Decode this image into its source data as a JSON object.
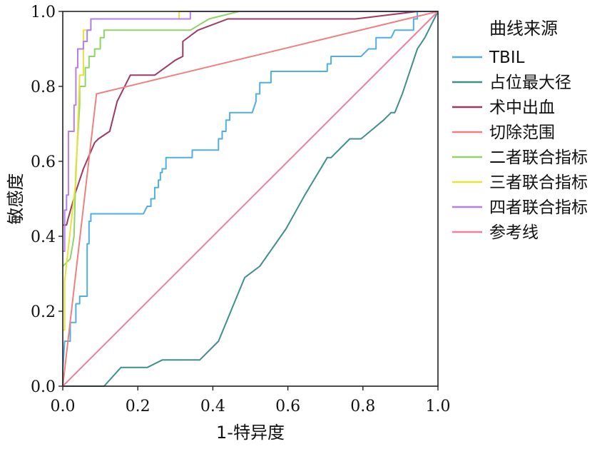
{
  "chart_data": {
    "type": "line",
    "title": "",
    "xlabel": "1-特异度",
    "ylabel": "敏感度",
    "xlim": [
      0,
      1
    ],
    "ylim": [
      0,
      1
    ],
    "xticks": [
      "0.0",
      "0.2",
      "0.4",
      "0.6",
      "0.8",
      "1.0"
    ],
    "yticks": [
      "0.0",
      "0.2",
      "0.4",
      "0.6",
      "0.8",
      "1.0"
    ],
    "grid": false,
    "legend": {
      "title": "曲线来源",
      "position": "right"
    },
    "series": [
      {
        "name": "TBIL",
        "color": "#4fb0e0",
        "points": [
          [
            0,
            0
          ],
          [
            0,
            0.04
          ],
          [
            0.005,
            0.12
          ],
          [
            0.02,
            0.12
          ],
          [
            0.02,
            0.17
          ],
          [
            0.035,
            0.17
          ],
          [
            0.035,
            0.22
          ],
          [
            0.045,
            0.22
          ],
          [
            0.045,
            0.24
          ],
          [
            0.065,
            0.24
          ],
          [
            0.065,
            0.38
          ],
          [
            0.07,
            0.38
          ],
          [
            0.07,
            0.44
          ],
          [
            0.075,
            0.44
          ],
          [
            0.075,
            0.46
          ],
          [
            0.215,
            0.46
          ],
          [
            0.225,
            0.48
          ],
          [
            0.235,
            0.48
          ],
          [
            0.235,
            0.5
          ],
          [
            0.245,
            0.5
          ],
          [
            0.245,
            0.53
          ],
          [
            0.255,
            0.53
          ],
          [
            0.255,
            0.55
          ],
          [
            0.26,
            0.55
          ],
          [
            0.26,
            0.57
          ],
          [
            0.265,
            0.57
          ],
          [
            0.265,
            0.58
          ],
          [
            0.275,
            0.58
          ],
          [
            0.275,
            0.61
          ],
          [
            0.345,
            0.61
          ],
          [
            0.345,
            0.63
          ],
          [
            0.415,
            0.63
          ],
          [
            0.415,
            0.66
          ],
          [
            0.425,
            0.66
          ],
          [
            0.425,
            0.68
          ],
          [
            0.435,
            0.68
          ],
          [
            0.435,
            0.71
          ],
          [
            0.445,
            0.71
          ],
          [
            0.445,
            0.73
          ],
          [
            0.505,
            0.73
          ],
          [
            0.515,
            0.76
          ],
          [
            0.515,
            0.78
          ],
          [
            0.525,
            0.78
          ],
          [
            0.525,
            0.81
          ],
          [
            0.555,
            0.81
          ],
          [
            0.555,
            0.83
          ],
          [
            0.555,
            0.84
          ],
          [
            0.705,
            0.84
          ],
          [
            0.705,
            0.86
          ],
          [
            0.715,
            0.86
          ],
          [
            0.715,
            0.88
          ],
          [
            0.795,
            0.88
          ],
          [
            0.815,
            0.9
          ],
          [
            0.835,
            0.9
          ],
          [
            0.835,
            0.93
          ],
          [
            0.875,
            0.93
          ],
          [
            0.885,
            0.95
          ],
          [
            0.935,
            0.95
          ],
          [
            0.935,
            0.98
          ],
          [
            0.945,
            0.98
          ],
          [
            0.945,
            1.0
          ],
          [
            1.0,
            1.0
          ]
        ]
      },
      {
        "name": "占位最大径",
        "color": "#3f8f8c",
        "points": [
          [
            0,
            0
          ],
          [
            0.11,
            0
          ],
          [
            0.155,
            0.05
          ],
          [
            0.225,
            0.05
          ],
          [
            0.265,
            0.07
          ],
          [
            0.365,
            0.07
          ],
          [
            0.415,
            0.12
          ],
          [
            0.485,
            0.29
          ],
          [
            0.525,
            0.32
          ],
          [
            0.595,
            0.42
          ],
          [
            0.645,
            0.51
          ],
          [
            0.705,
            0.61
          ],
          [
            0.715,
            0.61
          ],
          [
            0.765,
            0.66
          ],
          [
            0.795,
            0.66
          ],
          [
            0.855,
            0.71
          ],
          [
            0.875,
            0.73
          ],
          [
            0.885,
            0.73
          ],
          [
            0.905,
            0.78
          ],
          [
            0.945,
            0.9
          ],
          [
            0.965,
            0.93
          ],
          [
            0.985,
            0.97
          ],
          [
            1.0,
            1.0
          ]
        ]
      },
      {
        "name": "术中出血",
        "color": "#9c3a64",
        "points": [
          [
            0,
            0.43
          ],
          [
            0.01,
            0.43
          ],
          [
            0.015,
            0.45
          ],
          [
            0.035,
            0.52
          ],
          [
            0.055,
            0.58
          ],
          [
            0.085,
            0.65
          ],
          [
            0.095,
            0.66
          ],
          [
            0.125,
            0.68
          ],
          [
            0.145,
            0.76
          ],
          [
            0.18,
            0.83
          ],
          [
            0.245,
            0.83
          ],
          [
            0.3,
            0.87
          ],
          [
            0.32,
            0.88
          ],
          [
            0.32,
            0.92
          ],
          [
            0.36,
            0.95
          ],
          [
            0.44,
            0.98
          ],
          [
            0.46,
            0.98
          ],
          [
            0.78,
            0.98
          ],
          [
            0.945,
            1.0
          ],
          [
            1.0,
            1.0
          ]
        ]
      },
      {
        "name": "切除范围",
        "color": "#f08080",
        "points": [
          [
            0,
            0
          ],
          [
            0.09,
            0.78
          ],
          [
            1.0,
            1.0
          ]
        ]
      },
      {
        "name": "二者联合指标",
        "color": "#8fd468",
        "points": [
          [
            0,
            0.32
          ],
          [
            0.02,
            0.34
          ],
          [
            0.025,
            0.37
          ],
          [
            0.03,
            0.4
          ],
          [
            0.035,
            0.58
          ],
          [
            0.045,
            0.75
          ],
          [
            0.045,
            0.8
          ],
          [
            0.06,
            0.8
          ],
          [
            0.06,
            0.85
          ],
          [
            0.07,
            0.85
          ],
          [
            0.07,
            0.88
          ],
          [
            0.085,
            0.88
          ],
          [
            0.085,
            0.9
          ],
          [
            0.1,
            0.9
          ],
          [
            0.1,
            0.93
          ],
          [
            0.11,
            0.93
          ],
          [
            0.11,
            0.95
          ],
          [
            0.34,
            0.95
          ],
          [
            0.39,
            0.98
          ],
          [
            0.47,
            1.0
          ],
          [
            1.0,
            1.0
          ]
        ]
      },
      {
        "name": "三者联合指标",
        "color": "#e6e23a",
        "points": [
          [
            0,
            0.15
          ],
          [
            0.005,
            0.15
          ],
          [
            0.005,
            0.28
          ],
          [
            0.035,
            0.55
          ],
          [
            0.045,
            0.83
          ],
          [
            0.055,
            0.83
          ],
          [
            0.055,
            0.95
          ],
          [
            0.075,
            0.95
          ],
          [
            0.075,
            0.98
          ],
          [
            0.31,
            0.98
          ],
          [
            0.31,
            1.0
          ],
          [
            1.0,
            1.0
          ]
        ]
      },
      {
        "name": "四者联合指标",
        "color": "#b57ee8",
        "points": [
          [
            0,
            0.36
          ],
          [
            0.005,
            0.36
          ],
          [
            0.005,
            0.47
          ],
          [
            0.01,
            0.47
          ],
          [
            0.01,
            0.51
          ],
          [
            0.015,
            0.51
          ],
          [
            0.015,
            0.68
          ],
          [
            0.03,
            0.68
          ],
          [
            0.03,
            0.75
          ],
          [
            0.035,
            0.75
          ],
          [
            0.035,
            0.85
          ],
          [
            0.04,
            0.85
          ],
          [
            0.04,
            0.9
          ],
          [
            0.055,
            0.9
          ],
          [
            0.055,
            0.92
          ],
          [
            0.065,
            0.92
          ],
          [
            0.065,
            0.95
          ],
          [
            0.075,
            0.95
          ],
          [
            0.075,
            0.98
          ],
          [
            0.34,
            0.98
          ],
          [
            0.34,
            1.0
          ],
          [
            1.0,
            1.0
          ]
        ]
      },
      {
        "name": "参考线",
        "color": "#ef7f9c",
        "points": [
          [
            0,
            0
          ],
          [
            1,
            1
          ]
        ]
      }
    ]
  }
}
